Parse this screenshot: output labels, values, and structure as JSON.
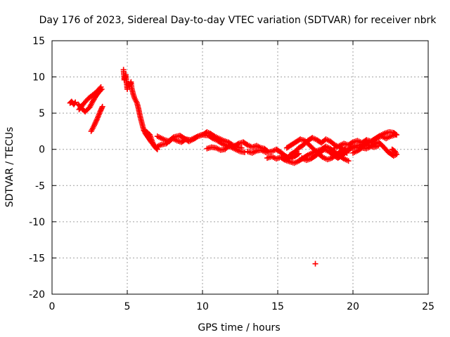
{
  "chart_data": {
    "type": "scatter",
    "title": "Day 176 of 2023, Sidereal Day-to-day VTEC variation (SDTVAR) for receiver nbrk",
    "xlabel": "GPS time / hours",
    "ylabel": "SDTVAR / TECUs",
    "xlim": [
      0,
      25
    ],
    "ylim": [
      -20,
      15
    ],
    "x_ticks": [
      0,
      5,
      10,
      15,
      20,
      25
    ],
    "y_ticks": [
      15,
      10,
      5,
      0,
      -5,
      -10,
      -15,
      -20
    ],
    "x_tick_labels": [
      "0",
      "5",
      "10",
      "15",
      "20",
      "25"
    ],
    "y_tick_labels": [
      "15",
      "10",
      "5",
      "0",
      "-5",
      "-10",
      "-15",
      "-20"
    ],
    "grid": true,
    "marker": "plus",
    "color": "#ff0000",
    "tracks": [
      {
        "name": "track-1",
        "points": [
          [
            1.2,
            6.4
          ],
          [
            1.3,
            6.6
          ],
          [
            1.45,
            6.2
          ],
          [
            1.55,
            6.5
          ]
        ]
      },
      {
        "name": "track-2",
        "points": [
          [
            1.75,
            6.2
          ],
          [
            2.0,
            5.6
          ],
          [
            2.2,
            5.2
          ],
          [
            2.5,
            5.8
          ],
          [
            2.7,
            6.6
          ],
          [
            2.9,
            7.3
          ],
          [
            3.1,
            7.9
          ],
          [
            3.3,
            8.3
          ]
        ]
      },
      {
        "name": "track-3",
        "points": [
          [
            1.8,
            5.5
          ],
          [
            2.1,
            6.3
          ],
          [
            2.4,
            7.0
          ],
          [
            2.7,
            7.5
          ],
          [
            3.0,
            8.0
          ],
          [
            3.25,
            8.6
          ]
        ]
      },
      {
        "name": "track-4",
        "points": [
          [
            2.6,
            2.5
          ],
          [
            2.8,
            3.3
          ],
          [
            3.0,
            4.2
          ],
          [
            3.2,
            5.2
          ],
          [
            3.35,
            5.9
          ]
        ]
      },
      {
        "name": "track-5",
        "points": [
          [
            4.75,
            11.0
          ],
          [
            4.8,
            9.6
          ],
          [
            4.9,
            10.3
          ],
          [
            5.0,
            8.3
          ],
          [
            5.05,
            9.0
          ],
          [
            5.15,
            8.8
          ],
          [
            5.25,
            9.3
          ],
          [
            5.3,
            8.4
          ],
          [
            5.4,
            7.6
          ],
          [
            5.5,
            7.0
          ],
          [
            5.65,
            6.4
          ],
          [
            5.75,
            5.6
          ],
          [
            5.85,
            4.6
          ],
          [
            5.95,
            3.8
          ],
          [
            6.05,
            3.0
          ],
          [
            6.2,
            2.2
          ],
          [
            6.4,
            1.6
          ],
          [
            6.6,
            1.0
          ],
          [
            6.8,
            0.5
          ],
          [
            6.95,
            0.1
          ]
        ]
      },
      {
        "name": "track-6",
        "points": [
          [
            6.1,
            2.6
          ],
          [
            6.3,
            2.4
          ],
          [
            6.5,
            2.0
          ],
          [
            6.6,
            1.4
          ],
          [
            6.75,
            0.6
          ],
          [
            6.9,
            0.2
          ],
          [
            7.0,
            0.0
          ]
        ]
      },
      {
        "name": "track-7",
        "points": [
          [
            7.0,
            1.8
          ],
          [
            7.2,
            1.6
          ],
          [
            7.5,
            1.3
          ],
          [
            7.8,
            1.1
          ],
          [
            8.0,
            1.5
          ],
          [
            8.3,
            1.2
          ],
          [
            8.6,
            1.0
          ],
          [
            8.9,
            1.4
          ],
          [
            9.2,
            1.3
          ],
          [
            9.5,
            1.6
          ],
          [
            9.8,
            1.9
          ],
          [
            10.1,
            2.1
          ],
          [
            10.3,
            2.4
          ],
          [
            10.5,
            2.2
          ],
          [
            10.8,
            1.8
          ],
          [
            11.1,
            1.5
          ],
          [
            11.4,
            1.2
          ],
          [
            11.7,
            1.0
          ],
          [
            12.0,
            0.6
          ],
          [
            12.3,
            0.3
          ],
          [
            12.6,
            0.2
          ]
        ]
      },
      {
        "name": "track-8",
        "points": [
          [
            6.9,
            0.3
          ],
          [
            7.2,
            0.6
          ],
          [
            7.6,
            0.8
          ],
          [
            7.8,
            1.2
          ],
          [
            8.1,
            1.7
          ],
          [
            8.5,
            1.9
          ],
          [
            8.8,
            1.5
          ],
          [
            9.1,
            1.1
          ],
          [
            9.4,
            1.4
          ],
          [
            9.7,
            1.8
          ],
          [
            10.0,
            2.0
          ],
          [
            10.4,
            1.9
          ],
          [
            10.7,
            1.5
          ],
          [
            11.0,
            1.2
          ],
          [
            11.3,
            0.8
          ],
          [
            11.6,
            0.5
          ],
          [
            11.9,
            0.3
          ],
          [
            12.2,
            0.0
          ],
          [
            12.5,
            -0.3
          ],
          [
            12.8,
            -0.4
          ]
        ]
      },
      {
        "name": "track-9",
        "points": [
          [
            10.3,
            0.1
          ],
          [
            10.6,
            0.3
          ],
          [
            10.9,
            0.2
          ],
          [
            11.2,
            -0.1
          ],
          [
            11.5,
            0.0
          ],
          [
            11.8,
            0.6
          ],
          [
            12.1,
            0.4
          ],
          [
            12.4,
            0.8
          ],
          [
            12.7,
            1.0
          ],
          [
            13.0,
            0.6
          ],
          [
            13.3,
            0.3
          ],
          [
            13.6,
            0.5
          ],
          [
            13.9,
            0.2
          ],
          [
            14.1,
            0.1
          ],
          [
            14.3,
            -0.2
          ]
        ]
      },
      {
        "name": "track-10",
        "points": [
          [
            13.0,
            -0.3
          ],
          [
            13.3,
            -0.5
          ],
          [
            13.6,
            -0.2
          ],
          [
            13.9,
            -0.1
          ],
          [
            14.2,
            -0.4
          ],
          [
            14.6,
            -0.3
          ],
          [
            14.9,
            0.0
          ],
          [
            15.2,
            -0.4
          ],
          [
            15.5,
            -0.9
          ],
          [
            15.8,
            -1.3
          ],
          [
            16.1,
            -1.0
          ],
          [
            16.4,
            -0.6
          ]
        ]
      },
      {
        "name": "track-11",
        "points": [
          [
            14.3,
            -1.2
          ],
          [
            14.6,
            -1.0
          ],
          [
            14.9,
            -1.3
          ],
          [
            15.2,
            -1.1
          ],
          [
            15.5,
            -1.5
          ],
          [
            15.8,
            -1.7
          ],
          [
            16.1,
            -1.9
          ],
          [
            16.4,
            -1.6
          ],
          [
            16.7,
            -1.2
          ],
          [
            17.0,
            -0.8
          ],
          [
            17.3,
            -0.5
          ],
          [
            17.6,
            -0.2
          ],
          [
            17.9,
            0.0
          ],
          [
            18.2,
            0.4
          ],
          [
            18.5,
            0.1
          ],
          [
            18.8,
            -0.4
          ],
          [
            19.1,
            -0.9
          ],
          [
            19.4,
            -1.3
          ],
          [
            19.7,
            -1.6
          ]
        ]
      },
      {
        "name": "track-12",
        "points": [
          [
            15.6,
            0.2
          ],
          [
            15.9,
            0.6
          ],
          [
            16.2,
            1.0
          ],
          [
            16.5,
            1.4
          ],
          [
            16.8,
            1.2
          ],
          [
            17.1,
            0.6
          ],
          [
            17.4,
            0.0
          ],
          [
            17.7,
            -0.6
          ],
          [
            18.0,
            -1.1
          ],
          [
            18.3,
            -1.4
          ],
          [
            18.6,
            -1.2
          ],
          [
            18.9,
            -0.7
          ],
          [
            19.2,
            -0.3
          ],
          [
            19.5,
            0.1
          ]
        ]
      },
      {
        "name": "track-13",
        "points": [
          [
            15.8,
            -0.8
          ],
          [
            16.1,
            -0.4
          ],
          [
            16.4,
            0.2
          ],
          [
            16.7,
            0.6
          ],
          [
            17.0,
            1.2
          ],
          [
            17.3,
            1.6
          ],
          [
            17.6,
            1.3
          ],
          [
            17.9,
            0.9
          ],
          [
            18.2,
            1.4
          ],
          [
            18.5,
            1.1
          ],
          [
            18.8,
            0.6
          ],
          [
            19.1,
            0.3
          ],
          [
            19.4,
            -0.1
          ],
          [
            19.6,
            -0.5
          ]
        ]
      },
      {
        "name": "track-14",
        "points": [
          [
            16.6,
            -1.2
          ],
          [
            16.9,
            -1.5
          ],
          [
            17.2,
            -1.3
          ],
          [
            17.5,
            -0.9
          ],
          [
            17.8,
            -0.4
          ],
          [
            18.1,
            0.0
          ],
          [
            18.4,
            -0.3
          ],
          [
            18.7,
            -0.8
          ],
          [
            19.0,
            -1.2
          ],
          [
            19.3,
            -0.8
          ],
          [
            19.6,
            -0.3
          ],
          [
            19.9,
            0.2
          ],
          [
            20.2,
            0.5
          ],
          [
            20.5,
            0.6
          ],
          [
            20.8,
            0.8
          ],
          [
            21.1,
            0.5
          ],
          [
            21.4,
            0.3
          ],
          [
            21.7,
            0.5
          ]
        ]
      },
      {
        "name": "track-15",
        "points": [
          [
            18.8,
            0.2
          ],
          [
            19.1,
            0.5
          ],
          [
            19.4,
            0.8
          ],
          [
            19.7,
            0.6
          ],
          [
            20.0,
            1.0
          ],
          [
            20.3,
            1.2
          ],
          [
            20.6,
            0.9
          ],
          [
            20.9,
            1.3
          ],
          [
            21.2,
            1.1
          ],
          [
            21.5,
            1.5
          ],
          [
            21.8,
            1.9
          ],
          [
            22.1,
            2.2
          ],
          [
            22.4,
            2.4
          ],
          [
            22.7,
            2.3
          ],
          [
            22.9,
            2.0
          ]
        ]
      },
      {
        "name": "track-16",
        "points": [
          [
            19.2,
            -0.6
          ],
          [
            19.5,
            -0.2
          ],
          [
            19.8,
            0.1
          ],
          [
            20.1,
            0.3
          ],
          [
            20.4,
            0.2
          ],
          [
            20.7,
            0.5
          ],
          [
            21.0,
            0.9
          ],
          [
            21.3,
            1.2
          ],
          [
            21.6,
            1.6
          ],
          [
            21.9,
            1.8
          ],
          [
            22.2,
            1.5
          ],
          [
            22.5,
            1.8
          ],
          [
            22.8,
            2.0
          ]
        ]
      },
      {
        "name": "track-17",
        "points": [
          [
            20.0,
            -0.5
          ],
          [
            20.3,
            -0.2
          ],
          [
            20.6,
            0.2
          ],
          [
            20.9,
            0.1
          ],
          [
            21.2,
            0.4
          ],
          [
            21.5,
            0.8
          ],
          [
            21.7,
            1.0
          ],
          [
            21.9,
            0.6
          ],
          [
            22.1,
            0.2
          ],
          [
            22.3,
            -0.3
          ],
          [
            22.5,
            -0.6
          ],
          [
            22.7,
            -0.9
          ],
          [
            22.9,
            -0.7
          ],
          [
            22.8,
            -0.3
          ],
          [
            22.6,
            0.0
          ]
        ]
      },
      {
        "name": "outlier",
        "points": [
          [
            17.5,
            -15.8
          ]
        ]
      }
    ]
  }
}
